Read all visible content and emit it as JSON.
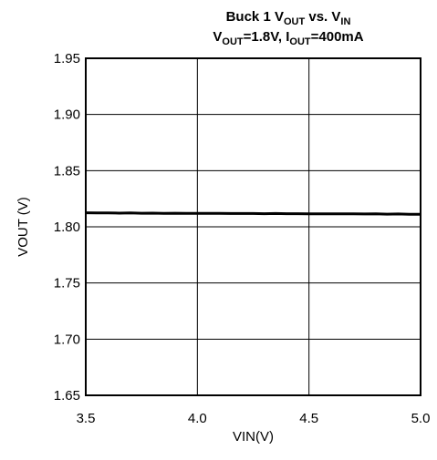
{
  "chart_data": {
    "type": "line",
    "title_line1": {
      "prefix": "Buck 1 V",
      "sub1": "OUT",
      "middle": " vs. V",
      "sub2": "IN"
    },
    "title_line2": {
      "prefix": "V",
      "sub1": "OUT",
      "middle": "=1.8V, I",
      "sub2": "OUT",
      "suffix": "=400mA"
    },
    "xlabel": "VIN(V)",
    "ylabel": "VOUT (V)",
    "xlim": [
      3.5,
      5.0
    ],
    "ylim": [
      1.65,
      1.95
    ],
    "xticks": [
      "3.5",
      "4.0",
      "4.5",
      "5.0"
    ],
    "xtick_values": [
      3.5,
      4.0,
      4.5,
      5.0
    ],
    "yticks": [
      "1.95",
      "1.90",
      "1.85",
      "1.80",
      "1.75",
      "1.70",
      "1.65"
    ],
    "ytick_values": [
      1.95,
      1.9,
      1.85,
      1.8,
      1.75,
      1.7,
      1.65
    ],
    "grid": true,
    "line_color": "#000000",
    "series": [
      {
        "x": [
          3.5,
          3.55,
          3.6,
          3.65,
          3.7,
          3.75,
          3.8,
          3.85,
          3.9,
          3.95,
          4.0,
          4.05,
          4.1,
          4.15,
          4.2,
          4.25,
          4.3,
          4.35,
          4.4,
          4.45,
          4.5,
          4.55,
          4.6,
          4.65,
          4.7,
          4.75,
          4.8,
          4.85,
          4.9,
          4.95,
          5.0
        ],
        "y": [
          1.8125,
          1.8123,
          1.8124,
          1.8122,
          1.8123,
          1.8121,
          1.8122,
          1.812,
          1.8121,
          1.8119,
          1.812,
          1.8119,
          1.8119,
          1.8118,
          1.8118,
          1.8118,
          1.8117,
          1.8118,
          1.8117,
          1.8117,
          1.8116,
          1.8115,
          1.8116,
          1.8115,
          1.8116,
          1.8114,
          1.8115,
          1.8113,
          1.8114,
          1.8112,
          1.8112
        ]
      }
    ]
  }
}
